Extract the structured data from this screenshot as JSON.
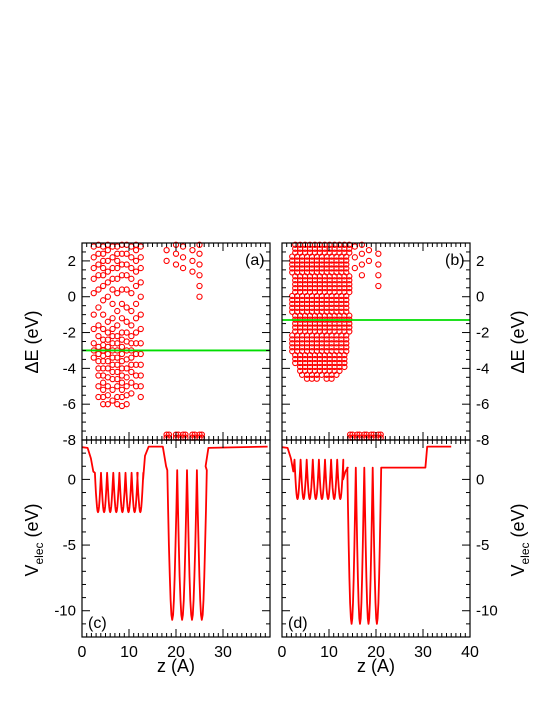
{
  "chart_data": [
    {
      "panel_label": "(a)",
      "type": "scatter",
      "ylabel": "ΔE (eV)",
      "ylabel_side": "left",
      "ylim": [
        -8,
        3
      ],
      "yticks": [
        "2",
        "0",
        "-2",
        "-4",
        "-6",
        "-8"
      ],
      "xlim": [
        0,
        40
      ],
      "marker": "open-circle",
      "color": "#ff0000",
      "hline": {
        "y": -3.0,
        "color": "#00dd00"
      },
      "columns": [
        {
          "x": 2.5,
          "y": [
            -3.4,
            -3.0,
            -2.6,
            -1.8,
            -1.0,
            0.2,
            1.0,
            1.6,
            2.2,
            2.8
          ]
        },
        {
          "x": 3.5,
          "y": [
            -5.6,
            -5.0,
            -4.4,
            -4.0,
            -3.6,
            -3.2,
            -2.8,
            -2.2,
            -1.6,
            -0.6,
            0.4,
            1.2,
            1.8,
            2.4,
            2.9
          ]
        },
        {
          "x": 4.5,
          "y": [
            -6.0,
            -5.6,
            -5.2,
            -4.8,
            -4.4,
            -4.0,
            -3.6,
            -3.3,
            -3.0,
            -2.7,
            -2.4,
            -1.8,
            -1.0,
            -0.2,
            0.6,
            1.2,
            1.6,
            2.0,
            2.4,
            2.8
          ]
        },
        {
          "x": 5.5,
          "y": [
            -6.0,
            -5.5,
            -5.0,
            -4.5,
            -4.0,
            -3.6,
            -3.2,
            -2.8,
            -2.4,
            -2.0,
            -1.4,
            0.0,
            0.8,
            1.4,
            2.0,
            2.6,
            2.9
          ]
        },
        {
          "x": 6.5,
          "y": [
            -5.8,
            -5.2,
            -4.6,
            -4.2,
            -3.8,
            -3.4,
            -3.0,
            -2.6,
            -2.2,
            -1.8,
            -1.2,
            -0.4,
            0.4,
            1.0,
            1.6,
            2.2,
            2.8
          ]
        },
        {
          "x": 7.5,
          "y": [
            -6.0,
            -5.6,
            -5.0,
            -4.6,
            -4.2,
            -3.8,
            -3.4,
            -3.0,
            -2.6,
            -2.2,
            -1.6,
            -0.8,
            0.2,
            1.0,
            1.6,
            2.0,
            2.4,
            2.8
          ]
        },
        {
          "x": 8.5,
          "y": [
            -6.1,
            -5.6,
            -5.2,
            -4.8,
            -4.4,
            -4.0,
            -3.6,
            -3.2,
            -2.8,
            -2.4,
            -2.0,
            -1.2,
            -0.4,
            0.4,
            1.2,
            1.8,
            2.4,
            2.9
          ]
        },
        {
          "x": 9.5,
          "y": [
            -6.0,
            -5.5,
            -5.0,
            -4.5,
            -4.0,
            -3.5,
            -3.0,
            -2.5,
            -2.0,
            -1.4,
            -0.6,
            0.4,
            1.2,
            1.8,
            2.4,
            2.9
          ]
        },
        {
          "x": 10.5,
          "y": [
            -5.4,
            -4.8,
            -4.2,
            -3.8,
            -3.4,
            -3.0,
            -2.6,
            -2.2,
            -1.6,
            -0.8,
            0.2,
            1.0,
            1.6,
            2.2,
            2.8
          ]
        },
        {
          "x": 11.5,
          "y": [
            -5.0,
            -4.4,
            -3.8,
            -3.2,
            -2.6,
            -2.0,
            -1.2,
            -0.4,
            0.6,
            1.4,
            2.0,
            2.6,
            2.9
          ]
        },
        {
          "x": 12.5,
          "y": [
            -5.6,
            -5.0,
            -4.4,
            -3.8,
            -3.2,
            -2.6,
            -1.8,
            -1.0,
            0.0,
            0.8,
            1.6,
            2.2,
            2.8
          ]
        },
        {
          "x": 18.0,
          "y": [
            2.0,
            2.6
          ]
        },
        {
          "x": 20.0,
          "y": [
            1.8,
            2.4,
            2.9
          ]
        },
        {
          "x": 21.5,
          "y": [
            1.6,
            2.2,
            2.8
          ]
        },
        {
          "x": 23.5,
          "y": [
            1.4,
            2.0,
            2.6
          ]
        },
        {
          "x": 25.0,
          "y": [
            0.0,
            0.6,
            1.2,
            1.8,
            2.4,
            2.9
          ]
        }
      ],
      "bottom_cluster": {
        "y": -7.7,
        "x": [
          18.0,
          18.5,
          20.0,
          20.5,
          21.5,
          22.0,
          23.5,
          24.0,
          25.0,
          25.5
        ]
      }
    },
    {
      "panel_label": "(b)",
      "type": "scatter",
      "ylabel": "ΔE (eV)",
      "ylabel_side": "right",
      "ylim": [
        -8,
        3
      ],
      "yticks": [
        "2",
        "0",
        "-2",
        "-4",
        "-6",
        "-8"
      ],
      "xlim": [
        0,
        40
      ],
      "marker": "open-circle",
      "color": "#ff0000",
      "hline": {
        "y": -1.3,
        "color": "#00dd00"
      },
      "dense_region": {
        "x_from": 2.5,
        "x_to": 14.0,
        "y_top": 2.9,
        "y_bottom": [
          -3.8,
          -4.2,
          -4.4,
          -4.6,
          -4.6,
          -4.6,
          -4.5,
          -4.6,
          -4.6,
          -4.4,
          -4.0,
          -3.2
        ]
      },
      "columns": [
        {
          "x": 15.5,
          "y": [
            1.6,
            2.2,
            2.8
          ]
        },
        {
          "x": 17.0,
          "y": [
            1.2,
            1.8,
            2.4,
            2.9
          ]
        },
        {
          "x": 18.5,
          "y": [
            2.0,
            2.6
          ]
        },
        {
          "x": 20.5,
          "y": [
            0.6,
            1.2,
            1.8,
            2.4
          ]
        }
      ],
      "bottom_cluster": {
        "y": -7.7,
        "x": [
          14.5,
          15.0,
          16.0,
          16.5,
          17.5,
          18.0,
          19.0,
          19.5,
          20.5,
          21.0
        ]
      }
    },
    {
      "panel_label": "(c)",
      "type": "line",
      "ylabel": "V_elec (eV)",
      "ylabel_side": "left",
      "xlabel": "z (A)",
      "ylim": [
        -12,
        3
      ],
      "yticks": [
        "0",
        "-5",
        "-10"
      ],
      "xlim": [
        0,
        40
      ],
      "xticks": [
        "0",
        "10",
        "20",
        "30"
      ],
      "color": "#ff0000",
      "well1": {
        "x_from": 2.5,
        "x_to": 13.0,
        "centers": [
          3.4,
          4.7,
          6.0,
          7.3,
          8.6,
          9.9,
          11.2,
          12.4
        ],
        "top": 0.5,
        "bottom": -2.5
      },
      "plateau_edges": {
        "left_in": 2.0,
        "left_out": 13.5,
        "mid_start": 14.0
      },
      "well2": {
        "x_from": 18.0,
        "x_to": 26.5,
        "centers": [
          19.2,
          21.3,
          23.4,
          25.5
        ],
        "top": 0.7,
        "bottom": -10.7
      },
      "plateau_level": 2.5,
      "end_x": 39.5
    },
    {
      "panel_label": "(d)",
      "type": "line",
      "ylabel": "V_elec (eV)",
      "ylabel_side": "right",
      "xlabel": "z (A)",
      "ylim": [
        -12,
        3
      ],
      "yticks": [
        "0",
        "-5",
        "-10"
      ],
      "xlim": [
        0,
        40
      ],
      "xticks": [
        "0",
        "10",
        "20",
        "30",
        "40"
      ],
      "color": "#ff0000",
      "well1": {
        "x_from": 2.5,
        "x_to": 13.0,
        "centers": [
          3.3,
          4.6,
          5.9,
          7.2,
          8.5,
          9.8,
          11.1,
          12.4
        ],
        "top": 1.5,
        "bottom": -1.5
      },
      "well2": {
        "x_from": 14.0,
        "x_to": 21.0,
        "centers": [
          14.8,
          16.6,
          18.4,
          20.2
        ],
        "top": 0.9,
        "bottom": -11.0
      },
      "mid_level": 0.9,
      "step_x": 30.5,
      "plateau_level": 2.5,
      "end_x": 36.0
    }
  ],
  "labels": {
    "a": "(a)",
    "b": "(b)",
    "c": "(c)",
    "d": "(d)",
    "zlabel": "z (A)",
    "de_label": "ΔE (eV)",
    "v_main": "V",
    "v_sub": "elec",
    "v_unit": " (eV)"
  }
}
